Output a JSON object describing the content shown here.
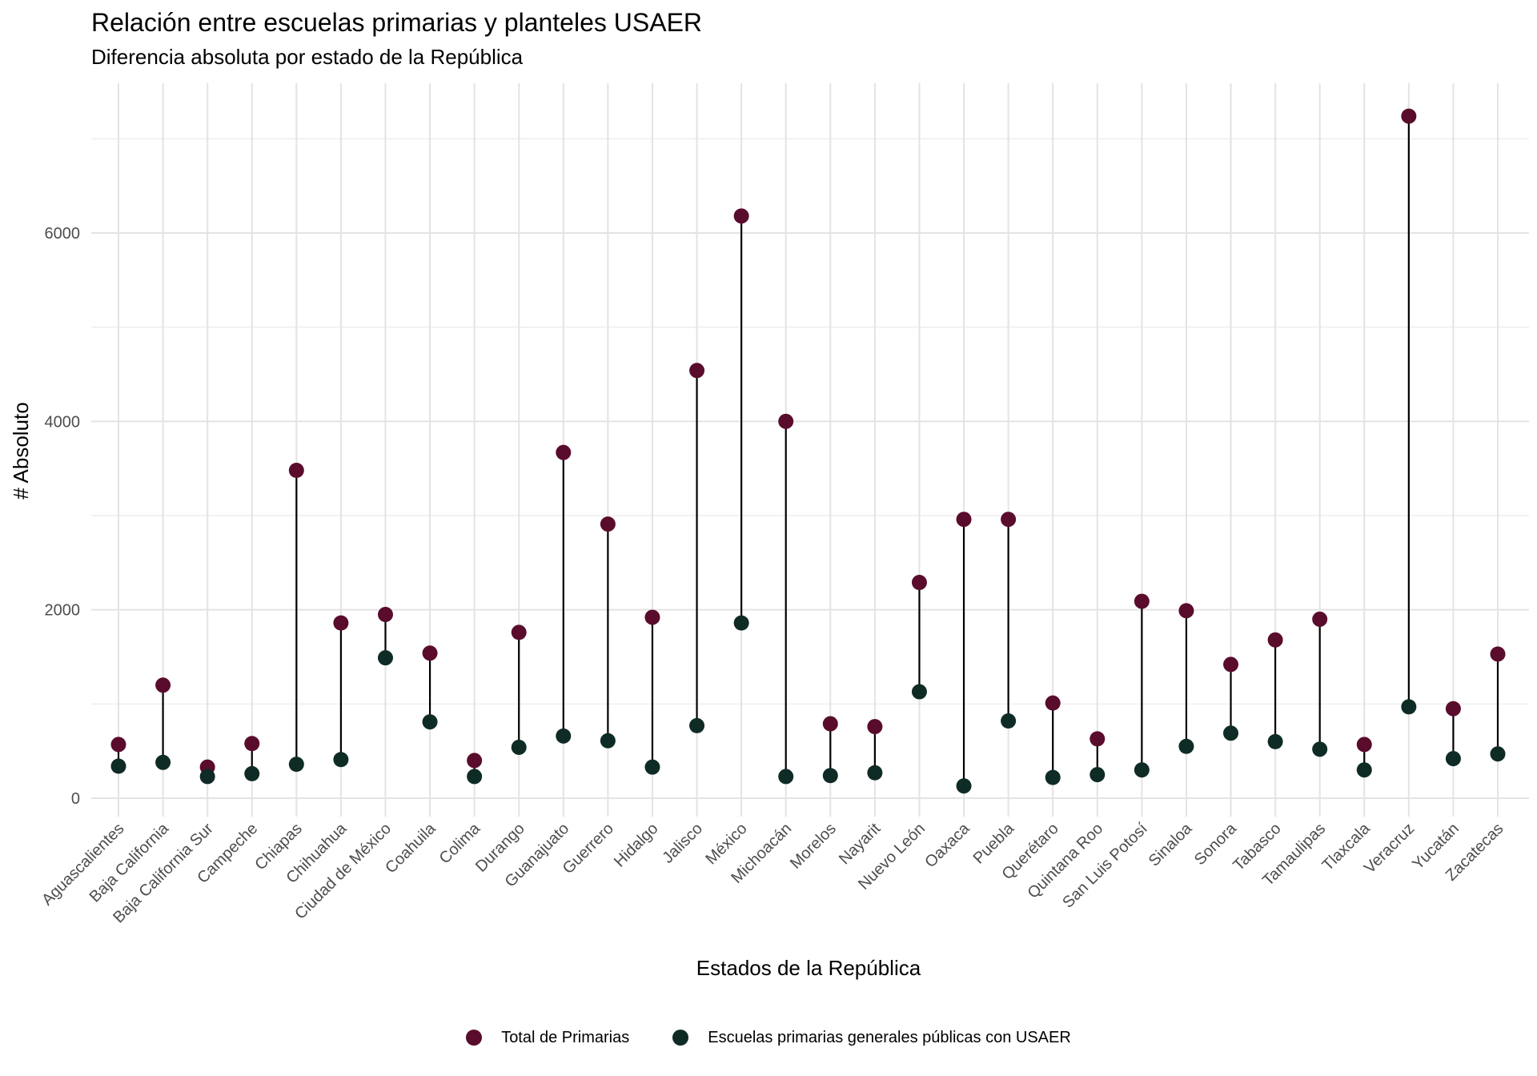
{
  "chart_data": {
    "type": "dumbbell",
    "title": "Relación entre escuelas primarias y planteles USAER",
    "subtitle": "Diferencia absoluta por estado de la República",
    "xlabel": "Estados de la República",
    "ylabel": "# Absoluto",
    "ylim": [
      -150,
      7500
    ],
    "yticks": [
      0,
      2000,
      4000,
      6000
    ],
    "grid": true,
    "legend_position": "bottom",
    "categories": [
      "Aguascalientes",
      "Baja California",
      "Baja California Sur",
      "Campeche",
      "Chiapas",
      "Chihuahua",
      "Ciudad de México",
      "Coahuila",
      "Colima",
      "Durango",
      "Guanajuato",
      "Guerrero",
      "Hidalgo",
      "Jalisco",
      "México",
      "Michoacán",
      "Morelos",
      "Nayarit",
      "Nuevo León",
      "Oaxaca",
      "Puebla",
      "Querétaro",
      "Quintana Roo",
      "San Luis Potosí",
      "Sinaloa",
      "Sonora",
      "Tabasco",
      "Tamaulipas",
      "Tlaxcala",
      "Veracruz",
      "Yucatán",
      "Zacatecas"
    ],
    "series": [
      {
        "name": "Total de Primarias",
        "color": "#5a0c2c",
        "values": [
          570,
          1200,
          330,
          580,
          3480,
          1860,
          1950,
          1540,
          400,
          1760,
          3670,
          2910,
          1920,
          4540,
          6180,
          4000,
          790,
          760,
          2290,
          2960,
          2960,
          1010,
          630,
          2090,
          1990,
          1420,
          1680,
          1900,
          570,
          7240,
          950,
          1530
        ]
      },
      {
        "name": "Escuelas primarias generales públicas con USAER",
        "color": "#0f2b25",
        "values": [
          340,
          380,
          230,
          260,
          360,
          410,
          1490,
          810,
          230,
          540,
          660,
          610,
          330,
          770,
          1860,
          230,
          240,
          270,
          1130,
          130,
          820,
          220,
          250,
          300,
          550,
          690,
          600,
          520,
          300,
          970,
          420,
          470
        ]
      }
    ]
  }
}
